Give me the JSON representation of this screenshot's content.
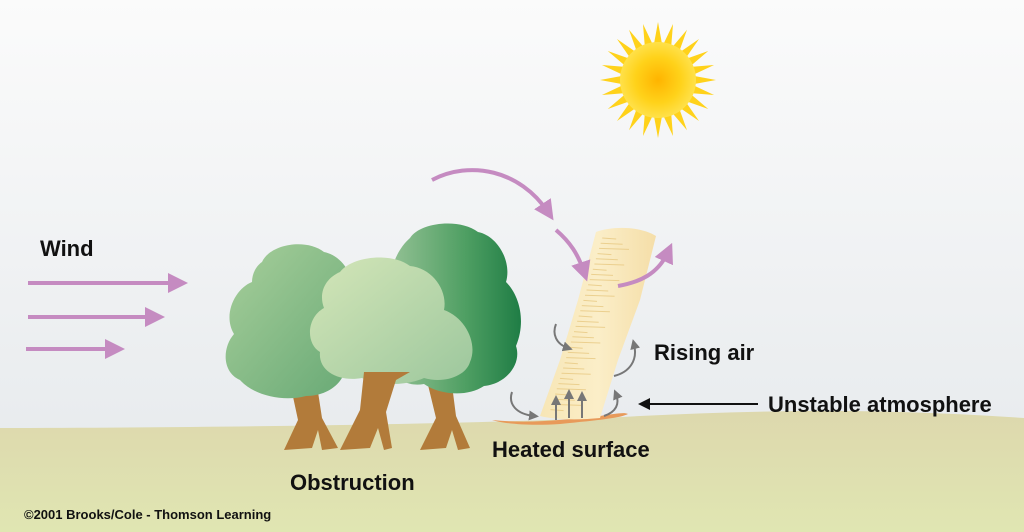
{
  "labels": {
    "wind": "Wind",
    "rising_air": "Rising air",
    "unstable_atmosphere": "Unstable atmosphere",
    "heated_surface": "Heated surface",
    "obstruction": "Obstruction",
    "copyright": "©2001 Brooks/Cole - Thomson Learning"
  },
  "colors": {
    "sky_top": "#f8f8f8",
    "sky_bottom": "#e6e9ec",
    "ground_top": "#ddd9b0",
    "ground_bottom": "#dfe4b0",
    "arrow": "#c58bc1",
    "trunk": "#b27b3a",
    "sun": "#ffd21a",
    "heated_surface": "#e89a5a",
    "small_arrows": "#777777"
  }
}
